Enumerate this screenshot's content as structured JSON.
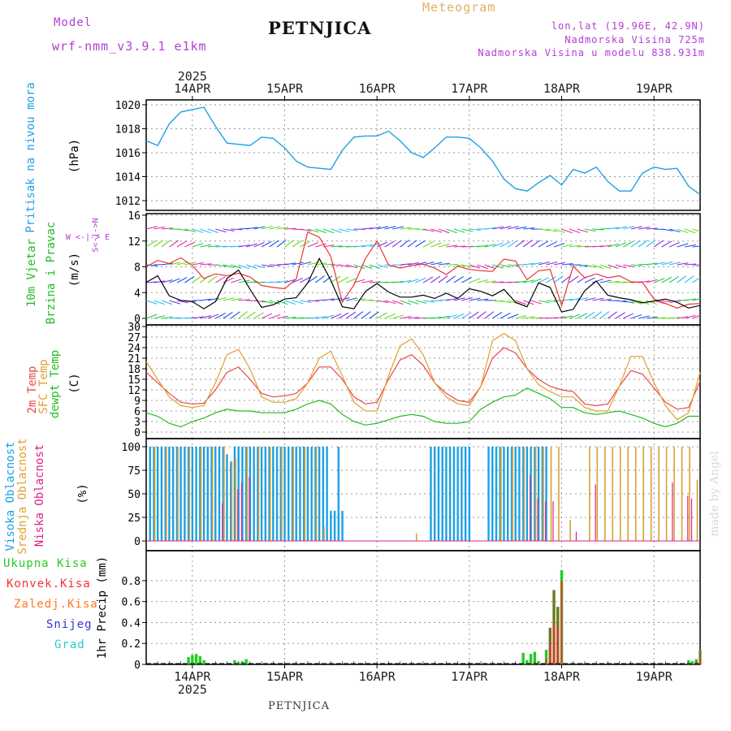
{
  "header": {
    "model_label": "Model",
    "model_name": "wrf-nmm_v3.9.1 e1km",
    "station": "PETNJICA",
    "title": "Meteogram",
    "lonlat": "lon,lat (19.96E, 42.9N)",
    "altitude": "Nadmorska Visina 725m",
    "model_altitude": "Nadmorska Visina u modelu 838.931m"
  },
  "footer": {
    "station": "PETNJICA",
    "credit": "made by Angel"
  },
  "colors": {
    "pressure": "#1ea0e6",
    "wind_speed": "#000000",
    "gust": "#ee3333",
    "temp2m": "#e8484a",
    "sfc_temp": "#e0a030",
    "dewpoint": "#22bb22",
    "cloud_high": "#1aa0e6",
    "cloud_mid": "#d9a030",
    "cloud_low": "#dd2288",
    "precip_total": "#22cc22",
    "precip_conv": "#ee3333",
    "precip_frozen": "#ff7722",
    "precip_snow": "#3333dd",
    "precip_hail": "#22cccc"
  },
  "axes": {
    "year": "2025",
    "dates": [
      "14APR",
      "15APR",
      "16APR",
      "17APR",
      "18APR",
      "19APR"
    ],
    "date_hours": [
      12,
      36,
      60,
      84,
      108,
      132
    ],
    "x_range_hours": [
      0,
      144
    ]
  },
  "chart_data": [
    {
      "type": "line",
      "panel": "pressure",
      "ylabel_left": "Pritisak na nivou mora",
      "ylabel_unit": "(hPa)",
      "ylim": [
        1012,
        1020
      ],
      "yticks": [
        "1012",
        "1014",
        "1016",
        "1018",
        "1020"
      ],
      "grid": true,
      "x_hours": [
        0,
        3,
        6,
        9,
        12,
        15,
        18,
        21,
        24,
        27,
        30,
        33,
        36,
        39,
        42,
        45,
        48,
        51,
        54,
        57,
        60,
        63,
        66,
        69,
        72,
        75,
        78,
        81,
        84,
        87,
        90,
        93,
        96,
        99,
        102,
        105,
        108,
        111,
        114,
        117,
        120,
        123,
        126,
        129,
        132,
        135,
        138,
        141,
        144
      ],
      "values": [
        1017.0,
        1016.6,
        1018.4,
        1019.4,
        1019.6,
        1019.8,
        1018.2,
        1016.8,
        1016.7,
        1016.6,
        1017.3,
        1017.2,
        1016.4,
        1015.3,
        1014.8,
        1014.7,
        1014.6,
        1016.2,
        1017.3,
        1017.4,
        1017.4,
        1017.8,
        1017.0,
        1016.0,
        1015.6,
        1016.4,
        1017.3,
        1017.3,
        1017.2,
        1016.4,
        1015.3,
        1013.8,
        1013.0,
        1012.8,
        1013.5,
        1014.1,
        1013.3,
        1014.6,
        1014.3,
        1014.8,
        1013.6,
        1012.8,
        1012.8,
        1014.3,
        1014.8,
        1014.6,
        1014.7,
        1013.2,
        1012.5
      ]
    },
    {
      "type": "line",
      "panel": "wind",
      "ylabel_left": "10m Vjetar",
      "ylabel_left2": "Brzina i Pravac",
      "ylabel_unit": "(m/s)",
      "compass_lr": "W <-|-> E",
      "compass_ud": "S<-|->N",
      "ylim": [
        0,
        16
      ],
      "yticks": [
        "0",
        "4",
        "8",
        "12",
        "16"
      ],
      "grid": true,
      "series": [
        {
          "name": "speed",
          "x_hours": [
            0,
            3,
            6,
            9,
            12,
            15,
            18,
            21,
            24,
            27,
            30,
            33,
            36,
            39,
            42,
            45,
            48,
            51,
            54,
            57,
            60,
            63,
            66,
            69,
            72,
            75,
            78,
            81,
            84,
            87,
            90,
            93,
            96,
            99,
            102,
            105,
            108,
            111,
            114,
            117,
            120,
            123,
            126,
            129,
            132,
            135,
            138,
            141,
            144
          ],
          "values": [
            5.6,
            6.6,
            3.5,
            2.8,
            2.6,
            1.5,
            2.6,
            6.2,
            7.5,
            4.5,
            1.7,
            2.1,
            3.0,
            3.2,
            5.5,
            9.3,
            5.9,
            1.8,
            1.5,
            4.2,
            5.4,
            4.1,
            3.3,
            3.3,
            3.6,
            3.1,
            3.9,
            3.1,
            4.6,
            4.2,
            3.5,
            4.5,
            2.5,
            1.8,
            5.5,
            4.8,
            1.0,
            1.4,
            4.3,
            5.8,
            3.6,
            3.2,
            2.9,
            2.4,
            2.7,
            3.0,
            2.5,
            1.6,
            2.0
          ]
        },
        {
          "name": "gust",
          "x_hours": [
            0,
            3,
            6,
            9,
            12,
            15,
            18,
            21,
            24,
            27,
            30,
            33,
            36,
            39,
            42,
            45,
            48,
            51,
            54,
            57,
            60,
            63,
            66,
            69,
            72,
            75,
            78,
            81,
            84,
            87,
            90,
            93,
            96,
            99,
            102,
            105,
            108,
            111,
            114,
            117,
            120,
            123,
            126,
            129,
            132,
            135,
            138,
            141,
            144
          ],
          "values": [
            8.0,
            9.0,
            8.5,
            9.4,
            8.2,
            6.2,
            6.9,
            6.6,
            7.0,
            6.4,
            5.1,
            4.8,
            4.6,
            6.1,
            13.4,
            12.6,
            9.6,
            2.5,
            5.2,
            9.3,
            12.0,
            8.3,
            7.8,
            8.2,
            8.4,
            7.8,
            6.8,
            8.1,
            7.6,
            7.4,
            7.3,
            9.2,
            8.9,
            6.0,
            7.4,
            7.6,
            2.0,
            8.1,
            6.3,
            6.9,
            6.3,
            6.6,
            5.7,
            5.6,
            3.0,
            2.3,
            1.6,
            2.2,
            2.3
          ]
        }
      ]
    },
    {
      "type": "line",
      "panel": "temperature",
      "ylabel_left": "2m Temp",
      "ylabel_left2": "SFC Temp",
      "ylabel_left3": "dewpt Temp",
      "ylabel_unit": "(C)",
      "ylim": [
        0,
        30
      ],
      "yticks": [
        "0",
        "3",
        "6",
        "9",
        "12",
        "15",
        "18",
        "21",
        "24",
        "27",
        "30"
      ],
      "grid": true,
      "series": [
        {
          "name": "2m Temp",
          "x_hours": [
            0,
            3,
            6,
            9,
            12,
            15,
            18,
            21,
            24,
            27,
            30,
            33,
            36,
            39,
            42,
            45,
            48,
            51,
            54,
            57,
            60,
            63,
            66,
            69,
            72,
            75,
            78,
            81,
            84,
            87,
            90,
            93,
            96,
            99,
            102,
            105,
            108,
            111,
            114,
            117,
            120,
            123,
            126,
            129,
            132,
            135,
            138,
            141,
            144
          ],
          "values": [
            17,
            14,
            11,
            8.5,
            8,
            8.2,
            12,
            17,
            18.5,
            15,
            11,
            10,
            10.3,
            11,
            14,
            18.5,
            18.5,
            15,
            10,
            8,
            8.5,
            15,
            20.5,
            22,
            19,
            14,
            11,
            9,
            8.5,
            13,
            21,
            24,
            22.5,
            18,
            15,
            13,
            12,
            11.5,
            8,
            7.5,
            8,
            13,
            17.5,
            16.5,
            12.5,
            8.5,
            6.5,
            7,
            14.5
          ]
        },
        {
          "name": "SFC Temp",
          "x_hours": [
            0,
            3,
            6,
            9,
            12,
            15,
            18,
            21,
            24,
            27,
            30,
            33,
            36,
            39,
            42,
            45,
            48,
            51,
            54,
            57,
            60,
            63,
            66,
            69,
            72,
            75,
            78,
            81,
            84,
            87,
            90,
            93,
            96,
            99,
            102,
            105,
            108,
            111,
            114,
            117,
            120,
            123,
            126,
            129,
            132,
            135,
            138,
            141,
            144
          ],
          "values": [
            20,
            15,
            10,
            7.5,
            7,
            7.5,
            14,
            22,
            23.5,
            18,
            10,
            8.5,
            8.5,
            9.5,
            14,
            21,
            23,
            16,
            8.5,
            6,
            6,
            16,
            24.5,
            26.5,
            22,
            14,
            10,
            8,
            7.5,
            13,
            26,
            28,
            26,
            18,
            13.5,
            11.5,
            10,
            10,
            7,
            6,
            6,
            13,
            21.5,
            21.5,
            14,
            7.5,
            3.5,
            5.5,
            17
          ]
        },
        {
          "name": "dewpt Temp",
          "x_hours": [
            0,
            3,
            6,
            9,
            12,
            15,
            18,
            21,
            24,
            27,
            30,
            33,
            36,
            39,
            42,
            45,
            48,
            51,
            54,
            57,
            60,
            63,
            66,
            69,
            72,
            75,
            78,
            81,
            84,
            87,
            90,
            93,
            96,
            99,
            102,
            105,
            108,
            111,
            114,
            117,
            120,
            123,
            126,
            129,
            132,
            135,
            138,
            141,
            144
          ],
          "values": [
            5.5,
            4.5,
            2.5,
            1.5,
            3,
            4,
            5.5,
            6.5,
            6,
            6,
            5.5,
            5.5,
            5.5,
            6.5,
            8,
            9,
            8,
            5,
            3,
            2,
            2.5,
            3.5,
            4.5,
            5,
            4.5,
            3,
            2.5,
            2.5,
            3,
            6.5,
            8.5,
            10,
            10.5,
            12.5,
            11,
            9.5,
            7,
            7,
            5.5,
            5,
            5.5,
            6,
            5,
            4,
            2.5,
            1.5,
            2.5,
            4.5,
            4.5
          ]
        }
      ]
    },
    {
      "type": "bar",
      "panel": "cloud",
      "ylabel_left": "Visoka Oblacnost",
      "ylabel_left2": "Srednja Oblacnost",
      "ylabel_left3": "Niska Oblacnost",
      "ylabel_unit": "(%)",
      "ylim": [
        0,
        100
      ],
      "yticks": [
        "0",
        "25",
        "50",
        "75",
        "100"
      ],
      "grid": true,
      "series": [
        {
          "name": "Visoka Oblacnost",
          "x_hours": [
            1,
            2,
            3,
            4,
            5,
            6,
            7,
            8,
            9,
            10,
            11,
            12,
            13,
            14,
            15,
            16,
            17,
            18,
            19,
            20,
            21,
            22,
            23,
            24,
            25,
            26,
            27,
            28,
            29,
            30,
            31,
            32,
            33,
            34,
            35,
            36,
            37,
            38,
            39,
            40,
            41,
            42,
            43,
            44,
            45,
            46,
            47,
            48,
            49,
            50,
            51,
            52,
            74,
            75,
            76,
            77,
            78,
            79,
            80,
            81,
            82,
            83,
            84,
            89,
            90,
            91,
            92,
            93,
            94,
            95,
            96,
            97,
            98,
            99,
            100,
            101,
            102,
            103,
            104
          ],
          "values": [
            100,
            100,
            100,
            100,
            100,
            100,
            100,
            100,
            100,
            100,
            100,
            100,
            100,
            100,
            100,
            100,
            100,
            100,
            100,
            100,
            92,
            84,
            100,
            100,
            100,
            100,
            100,
            100,
            100,
            100,
            100,
            100,
            100,
            100,
            100,
            100,
            100,
            100,
            100,
            100,
            100,
            100,
            100,
            100,
            100,
            100,
            100,
            32,
            32,
            100,
            32,
            0,
            100,
            100,
            100,
            100,
            100,
            100,
            100,
            100,
            100,
            100,
            100,
            100,
            100,
            100,
            100,
            100,
            100,
            100,
            100,
            100,
            100,
            100,
            100,
            100,
            100,
            100,
            100
          ]
        },
        {
          "name": "Srednja Oblacnost",
          "x_hours": [
            2,
            5,
            8,
            11,
            14,
            17,
            20,
            22,
            23,
            26,
            29,
            32,
            35,
            38,
            41,
            44,
            46,
            70,
            92,
            95,
            98,
            101,
            103,
            105,
            107,
            110,
            115,
            117,
            119,
            121,
            123,
            125,
            127,
            129,
            131,
            133,
            135,
            137,
            139,
            141,
            143
          ],
          "values": [
            100,
            100,
            100,
            100,
            100,
            100,
            100,
            85,
            88,
            100,
            100,
            100,
            100,
            100,
            100,
            100,
            15,
            8,
            100,
            100,
            100,
            100,
            100,
            100,
            100,
            22,
            100,
            100,
            100,
            100,
            100,
            100,
            100,
            100,
            100,
            100,
            100,
            100,
            100,
            100,
            65
          ]
        },
        {
          "name": "Niska Oblacnost",
          "x_hours": [
            20,
            24,
            25,
            27,
            100,
            102,
            104,
            106,
            112,
            117,
            137,
            141,
            142
          ],
          "values": [
            40,
            55,
            62,
            68,
            70,
            45,
            42,
            42,
            10,
            60,
            62,
            48,
            45
          ]
        }
      ]
    },
    {
      "type": "bar",
      "panel": "precipitation",
      "ylabel_left": "1hr Precip (mm)",
      "legend": [
        "Ukupna Kisa",
        "Konvek.Kisa",
        "Zaledj.Kisa",
        "Snijeg",
        "Grad"
      ],
      "ylim": [
        0,
        0.9
      ],
      "yticks": [
        "0",
        "0.2",
        "0.4",
        "0.6",
        "0.8"
      ],
      "grid": true,
      "series": [
        {
          "name": "Ukupna Kisa",
          "x_hours": [
            11,
            12,
            13,
            14,
            15,
            23,
            24,
            25,
            26,
            98,
            99,
            100,
            101,
            102,
            104,
            105,
            106,
            107,
            108,
            141,
            142,
            143,
            144
          ],
          "values": [
            0.07,
            0.09,
            0.1,
            0.08,
            0.04,
            0.04,
            0.02,
            0.03,
            0.05,
            0.11,
            0.04,
            0.1,
            0.12,
            0.03,
            0.14,
            0.35,
            0.71,
            0.55,
            0.9,
            0.04,
            0.03,
            0.05,
            0.14
          ]
        },
        {
          "name": "Konvek.Kisa",
          "x_hours": [
            101,
            104,
            105,
            106,
            107,
            108,
            143,
            144
          ],
          "values": [
            0.02,
            0.05,
            0.2,
            0.4,
            0.35,
            0.8,
            0.03,
            0.13
          ]
        }
      ]
    }
  ]
}
